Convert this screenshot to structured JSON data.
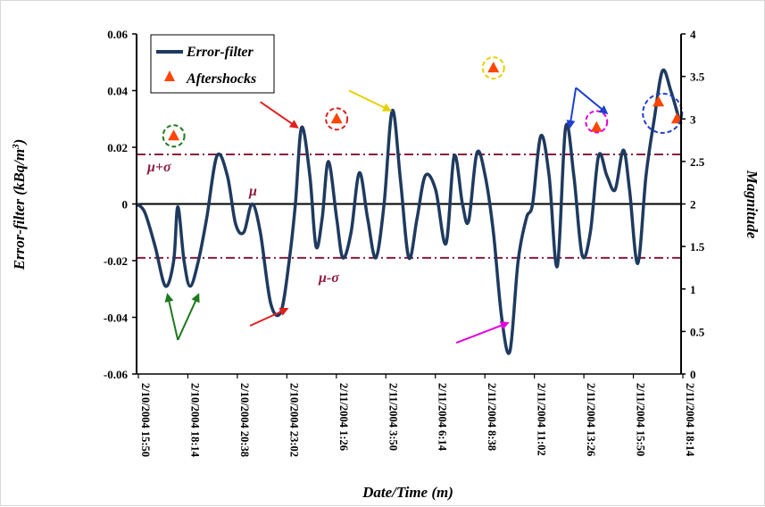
{
  "chart_data": {
    "type": "line",
    "xlabel": "Date/Time (m)",
    "ylabel": "Error-filter (kBq/m",
    "ylabel_sup": "3",
    "ylabel_tail": ")",
    "y2label": "Magnitude",
    "ylim": [
      -0.06,
      0.06
    ],
    "y2lim": [
      0,
      4
    ],
    "yticks": [
      "0.06",
      "0.04",
      "0.02",
      "0",
      "-0.02",
      "-0.04",
      "-0.06"
    ],
    "y2ticks": [
      "4",
      "3.5",
      "3",
      "2.5",
      "2",
      "1.5",
      "1",
      "0.5",
      "0"
    ],
    "xticks": [
      "2/10/2004 15:50",
      "2/10/2004 18:14",
      "2/10/2004 20:38",
      "2/10/2004 23:02",
      "2/11/2004 1:26",
      "2/11/2004 3:50",
      "2/11/2004 6:14",
      "2/11/2004 8:38",
      "2/11/2004 11:02",
      "2/11/2004 13:26",
      "2/11/2004 15:50",
      "2/11/2004 18:14"
    ],
    "xlim_hours": [
      0,
      26.4
    ],
    "reference_lines": [
      {
        "label": "μ+σ",
        "value": 0.0175,
        "style": "dash-dot",
        "color": "#8b1a3c"
      },
      {
        "label": "μ",
        "value": 0,
        "style": "solid",
        "color": "#000000"
      },
      {
        "label": "μ-σ",
        "value": -0.019,
        "style": "dash-dot",
        "color": "#8b1a3c"
      }
    ],
    "series": [
      {
        "name": "Error-filter",
        "color": "#1f3a5f",
        "axis": "left",
        "x_hours": [
          0.0,
          0.4,
          0.9,
          1.4,
          1.8,
          2.0,
          2.3,
          2.6,
          3.0,
          3.4,
          3.9,
          4.4,
          4.8,
          5.2,
          5.6,
          6.0,
          6.5,
          7.0,
          7.4,
          7.7,
          8.0,
          8.4,
          8.7,
          9.0,
          9.3,
          9.7,
          10.0,
          10.4,
          10.8,
          11.2,
          11.6,
          12.0,
          12.4,
          12.8,
          13.2,
          13.6,
          14.0,
          14.5,
          15.0,
          15.4,
          15.8,
          16.1,
          16.5,
          16.9,
          17.3,
          17.7,
          18.1,
          18.5,
          18.9,
          19.2,
          19.6,
          20.0,
          20.4,
          20.8,
          21.2,
          21.6,
          22.0,
          22.4,
          22.8,
          23.2,
          23.6,
          23.9,
          24.3,
          24.7,
          25.1,
          25.5,
          25.9,
          26.3
        ],
        "values": [
          0.0,
          -0.003,
          -0.015,
          -0.029,
          -0.02,
          -0.001,
          -0.02,
          -0.029,
          -0.02,
          -0.005,
          0.017,
          0.01,
          -0.007,
          -0.01,
          0.0,
          -0.01,
          -0.035,
          -0.038,
          -0.02,
          0.0,
          0.027,
          0.01,
          -0.015,
          -0.005,
          0.015,
          -0.005,
          -0.019,
          -0.01,
          0.011,
          -0.005,
          -0.019,
          0.0,
          0.033,
          0.008,
          -0.019,
          -0.005,
          0.01,
          0.005,
          -0.014,
          0.017,
          0.0,
          -0.006,
          0.018,
          0.01,
          -0.01,
          -0.04,
          -0.052,
          -0.02,
          -0.005,
          0.0,
          0.024,
          0.01,
          -0.022,
          0.027,
          0.01,
          -0.018,
          -0.01,
          0.017,
          0.01,
          0.005,
          0.019,
          0.005,
          -0.021,
          0.01,
          0.03,
          0.047,
          0.04,
          0.03
        ]
      },
      {
        "name": "Aftershocks",
        "color": "#ff4500",
        "axis": "right",
        "marker": "triangle",
        "points": [
          {
            "x_hours": 1.8,
            "value": 2.8
          },
          {
            "x_hours": 9.7,
            "value": 3.0
          },
          {
            "x_hours": 17.3,
            "value": 3.6
          },
          {
            "x_hours": 22.3,
            "value": 2.9
          },
          {
            "x_hours": 25.3,
            "value": 3.2
          },
          {
            "x_hours": 26.2,
            "value": 3.0
          }
        ]
      }
    ],
    "legend": {
      "placement": "top-left",
      "entries": [
        "Error-filter",
        "Aftershocks"
      ]
    },
    "grid": false,
    "annotations": {
      "circles": [
        {
          "x_hours": 1.8,
          "value": 0.024,
          "color": "#1e7a1e"
        },
        {
          "x_hours": 9.7,
          "value": 0.03,
          "color": "#e02020"
        },
        {
          "x_hours": 17.3,
          "value": 0.048,
          "color": "#e8d000"
        },
        {
          "x_hours": 22.3,
          "value": 0.029,
          "color": "#e000e0"
        },
        {
          "x_hours": 25.5,
          "value": 0.032,
          "color": "#1f3fcf"
        }
      ],
      "arrows": [
        {
          "from": [
            2.0,
            -0.048
          ],
          "to": [
            1.5,
            -0.032
          ],
          "color": "#1e7a1e"
        },
        {
          "from": [
            2.0,
            -0.048
          ],
          "to": [
            3.0,
            -0.032
          ],
          "color": "#1e7a1e"
        },
        {
          "from": [
            5.5,
            -0.043
          ],
          "to": [
            7.3,
            -0.037
          ],
          "color": "#e02020"
        },
        {
          "from": [
            6.0,
            0.036
          ],
          "to": [
            7.8,
            0.027
          ],
          "color": "#e02020"
        },
        {
          "from": [
            10.3,
            0.04
          ],
          "to": [
            12.3,
            0.033
          ],
          "color": "#e8d000"
        },
        {
          "from": [
            15.5,
            -0.049
          ],
          "to": [
            18.0,
            -0.042
          ],
          "color": "#e000e0"
        },
        {
          "from": [
            21.3,
            0.041
          ],
          "to": [
            21.0,
            0.027
          ],
          "color": "#1f3fcf"
        },
        {
          "from": [
            21.3,
            0.041
          ],
          "to": [
            22.8,
            0.032
          ],
          "color": "#1f3fcf"
        }
      ]
    }
  }
}
